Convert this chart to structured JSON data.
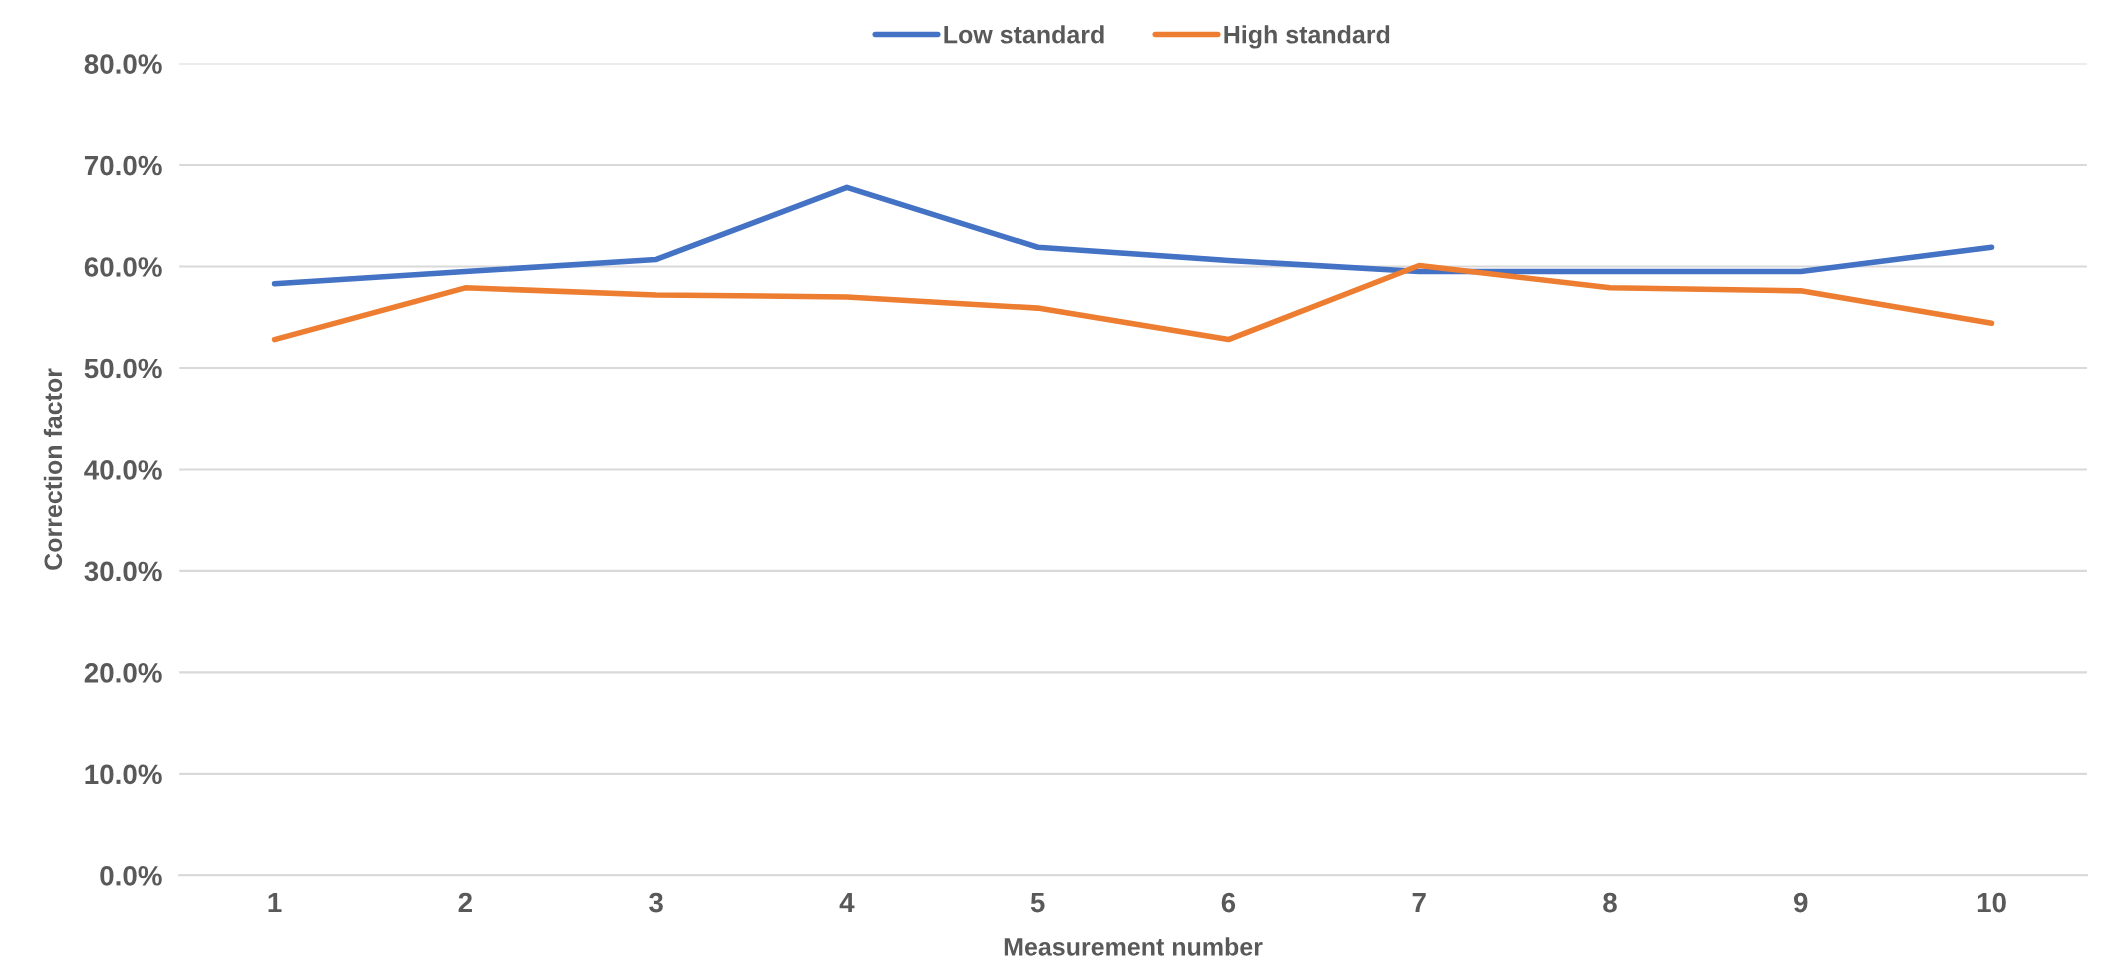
{
  "chart_data": {
    "type": "line",
    "xlabel": "Measurement number",
    "ylabel": "Correction factor",
    "categories": [
      "1",
      "2",
      "3",
      "4",
      "5",
      "6",
      "7",
      "8",
      "9",
      "10"
    ],
    "series": [
      {
        "name": "Low standard",
        "color": "#4472c4",
        "values": [
          58.3,
          59.5,
          60.7,
          67.8,
          61.9,
          60.6,
          59.5,
          59.5,
          59.5,
          61.9
        ]
      },
      {
        "name": "High standard",
        "color": "#ed7d31",
        "values": [
          52.8,
          57.9,
          57.2,
          57.0,
          55.9,
          52.8,
          60.1,
          57.9,
          57.6,
          54.4
        ]
      }
    ],
    "ylim": [
      0,
      80
    ],
    "yticks": [
      {
        "value": 0,
        "label": "0.0%"
      },
      {
        "value": 10,
        "label": "10.0%"
      },
      {
        "value": 20,
        "label": "20.0%"
      },
      {
        "value": 30,
        "label": "30.0%"
      },
      {
        "value": 40,
        "label": "40.0%"
      },
      {
        "value": 50,
        "label": "50.0%"
      },
      {
        "value": 60,
        "label": "60.0%"
      },
      {
        "value": 70,
        "label": "70.0%"
      },
      {
        "value": 80,
        "label": "80.0%"
      }
    ],
    "grid": "y",
    "legend": "top",
    "marker": "none",
    "line_style": "solid"
  }
}
